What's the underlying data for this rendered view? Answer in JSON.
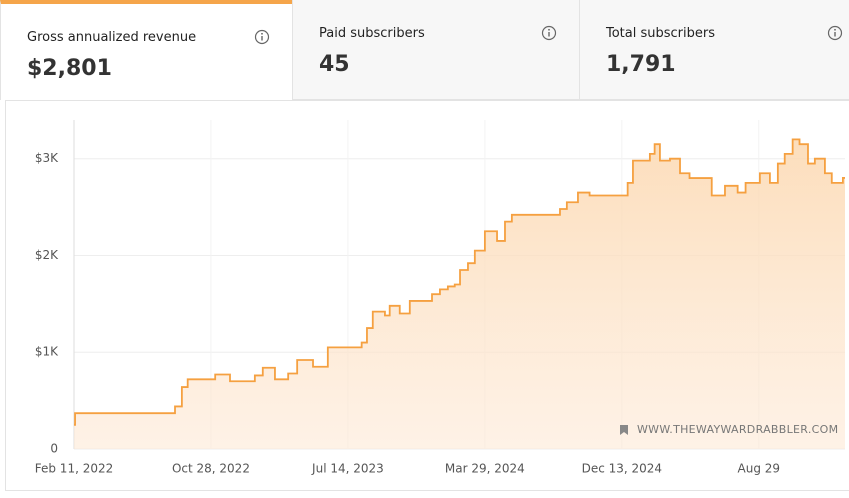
{
  "cards": [
    {
      "title": "Gross annualized revenue",
      "value": "$2,801"
    },
    {
      "title": "Paid subscribers",
      "value": "45"
    },
    {
      "title": "Total subscribers",
      "value": "1,791"
    }
  ],
  "chart_data": {
    "type": "line",
    "step": true,
    "color": "#f5a040",
    "fill": "#fde3c8",
    "grid": true,
    "watermark": "WWW.THEWAYWARDRABBLER.COM",
    "x": [
      "2022-02-11",
      "2022-02-13",
      "2022-08-21",
      "2022-09-03",
      "2022-09-14",
      "2022-11-05",
      "2022-12-03",
      "2023-01-19",
      "2023-02-03",
      "2023-02-26",
      "2023-03-23",
      "2023-04-09",
      "2023-05-09",
      "2023-06-06",
      "2023-08-09",
      "2023-08-19",
      "2023-08-30",
      "2023-09-22",
      "2023-10-01",
      "2023-10-20",
      "2023-11-08",
      "2023-12-20",
      "2024-01-04",
      "2024-01-19",
      "2024-02-01",
      "2024-02-11",
      "2024-02-26",
      "2024-03-10",
      "2024-03-29",
      "2024-04-21",
      "2024-05-06",
      "2024-05-19",
      "2024-08-18",
      "2024-08-31",
      "2024-09-21",
      "2024-10-13",
      "2024-12-24",
      "2025-01-03",
      "2025-02-04",
      "2025-02-13",
      "2025-02-23",
      "2025-03-14",
      "2025-04-02",
      "2025-04-20",
      "2025-06-01",
      "2025-06-26",
      "2025-07-20",
      "2025-08-04",
      "2025-08-31",
      "2025-09-19",
      "2025-10-04",
      "2025-10-17",
      "2025-11-01",
      "2025-11-14",
      "2025-11-30",
      "2025-12-13",
      "2026-01-01",
      "2026-01-14",
      "2026-02-04"
    ],
    "values": [
      250,
      370,
      440,
      640,
      720,
      770,
      700,
      760,
      840,
      720,
      780,
      920,
      850,
      1050,
      1100,
      1250,
      1420,
      1380,
      1480,
      1400,
      1530,
      1600,
      1650,
      1680,
      1700,
      1850,
      1920,
      2050,
      2250,
      2150,
      2350,
      2420,
      2480,
      2550,
      2650,
      2620,
      2750,
      2980,
      3050,
      3150,
      2980,
      3000,
      2850,
      2800,
      2620,
      2720,
      2650,
      2750,
      2850,
      2750,
      2950,
      3050,
      3200,
      3150,
      2950,
      3000,
      2850,
      2750,
      2801
    ],
    "xlim": [
      "2022-02-11",
      "2026-02-08"
    ],
    "xticks": [
      {
        "value": "2022-02-11",
        "label": "Feb 11, 2022"
      },
      {
        "value": "2022-10-28",
        "label": "Oct 28, 2022"
      },
      {
        "value": "2023-07-14",
        "label": "Jul 14, 2023"
      },
      {
        "value": "2024-03-29",
        "label": "Mar 29, 2024"
      },
      {
        "value": "2024-12-13",
        "label": "Dec 13, 2024"
      },
      {
        "value": "2025-08-29",
        "label": "Aug 29"
      }
    ],
    "ylim": [
      0,
      3400
    ],
    "yticks": [
      0,
      {
        "value": 1000,
        "label": "$1K"
      },
      {
        "value": 2000,
        "label": "$2K"
      },
      {
        "value": 3000,
        "label": "$3K"
      }
    ]
  }
}
